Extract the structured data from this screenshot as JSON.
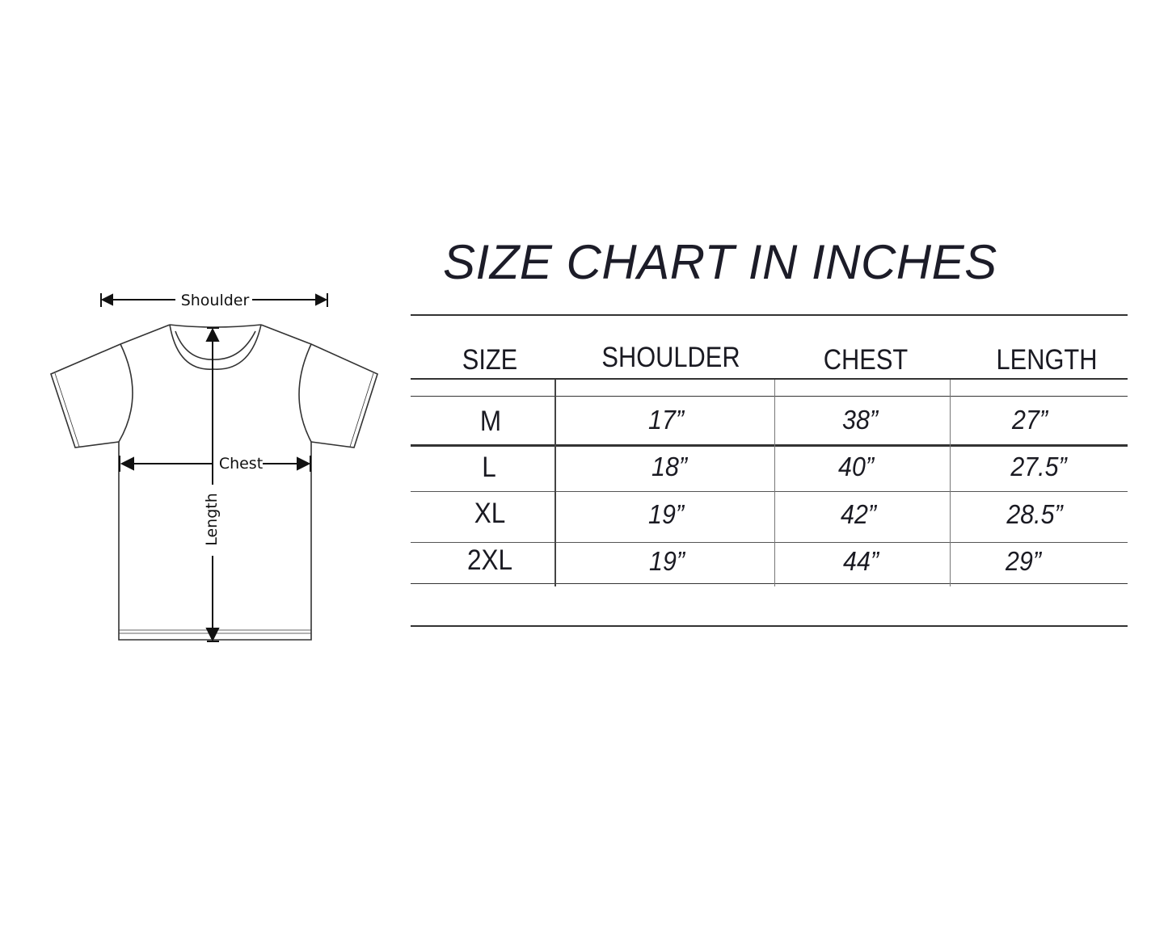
{
  "title": "SIZE CHART IN INCHES",
  "diagram": {
    "shoulder_label": "Shoulder",
    "chest_label": "Chest",
    "length_label": "Length"
  },
  "table": {
    "headers": [
      "SIZE",
      "SHOULDER",
      "CHEST",
      "LENGTH"
    ],
    "rows": [
      {
        "size": "M",
        "shoulder": "17”",
        "chest": "38”",
        "length": "27”"
      },
      {
        "size": "L",
        "shoulder": "18”",
        "chest": "40”",
        "length": "27.5”"
      },
      {
        "size": "XL",
        "shoulder": "19”",
        "chest": "42”",
        "length": "28.5”"
      },
      {
        "size": "2XL",
        "shoulder": "19”",
        "chest": "44”",
        "length": "29”"
      }
    ]
  },
  "colors": {
    "ink": "#1a1a22",
    "line": "#333333",
    "background": "#ffffff"
  }
}
